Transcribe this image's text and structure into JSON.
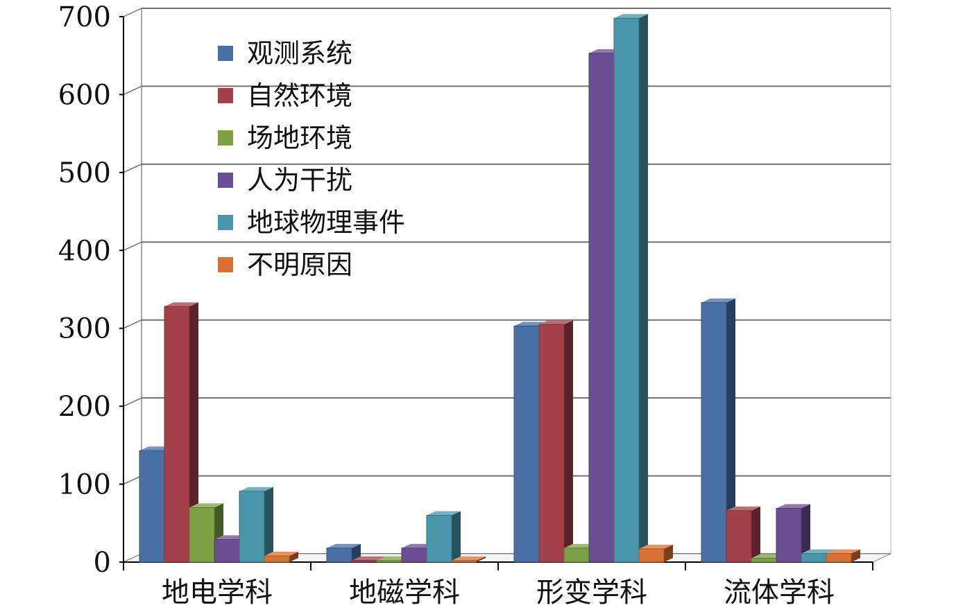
{
  "chart_data": {
    "type": "bar",
    "style": "3d-clustered-column",
    "categories": [
      "地电学科",
      "地磁学科",
      "形变学科",
      "流体学科"
    ],
    "series": [
      {
        "name": "观测系统",
        "color": "#4A6FA5",
        "values": [
          143,
          18,
          303,
          333
        ]
      },
      {
        "name": "自然环境",
        "color": "#A3404A",
        "values": [
          328,
          2,
          305,
          66
        ]
      },
      {
        "name": "场地环境",
        "color": "#7EA046",
        "values": [
          70,
          2,
          18,
          5
        ]
      },
      {
        "name": "人为干扰",
        "color": "#6B4E92",
        "values": [
          29,
          18,
          653,
          69
        ]
      },
      {
        "name": "地球物理事件",
        "color": "#4A95A9",
        "values": [
          91,
          60,
          698,
          11
        ]
      },
      {
        "name": "不明原因",
        "color": "#DA7134",
        "values": [
          8,
          2,
          17,
          11
        ]
      }
    ],
    "ylim": [
      0,
      700
    ],
    "yticks": [
      "0",
      "100",
      "200",
      "300",
      "400",
      "500",
      "600",
      "700"
    ],
    "grid": true,
    "legend": "top-left"
  }
}
